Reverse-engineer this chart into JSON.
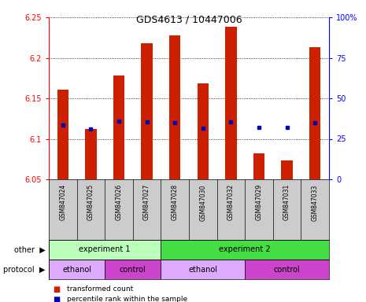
{
  "title": "GDS4613 / 10447006",
  "samples": [
    "GSM847024",
    "GSM847025",
    "GSM847026",
    "GSM847027",
    "GSM847028",
    "GSM847030",
    "GSM847032",
    "GSM847029",
    "GSM847031",
    "GSM847033"
  ],
  "bar_values": [
    6.161,
    6.112,
    6.178,
    6.218,
    6.228,
    6.168,
    6.238,
    6.082,
    6.073,
    6.213
  ],
  "bar_base": 6.05,
  "blue_marker_values": [
    6.117,
    6.112,
    6.122,
    6.121,
    6.12,
    6.113,
    6.121,
    6.114,
    6.114,
    6.12
  ],
  "ylim_left": [
    6.05,
    6.25
  ],
  "ylim_right": [
    0,
    100
  ],
  "yticks_left": [
    6.05,
    6.1,
    6.15,
    6.2,
    6.25
  ],
  "ytick_labels_left": [
    "6.05",
    "6.1",
    "6.15",
    "6.2",
    "6.25"
  ],
  "yticks_right": [
    0,
    25,
    50,
    75,
    100
  ],
  "ytick_labels_right": [
    "0",
    "25",
    "50",
    "75",
    "100%"
  ],
  "bar_color": "#cc2000",
  "blue_color": "#0000bb",
  "experiment_groups": [
    {
      "label": "experiment 1",
      "start": 0,
      "end": 4,
      "color": "#bbffbb"
    },
    {
      "label": "experiment 2",
      "start": 4,
      "end": 10,
      "color": "#44dd44"
    }
  ],
  "protocol_groups": [
    {
      "label": "ethanol",
      "start": 0,
      "end": 2,
      "color": "#ddaaff"
    },
    {
      "label": "control",
      "start": 2,
      "end": 4,
      "color": "#cc44cc"
    },
    {
      "label": "ethanol",
      "start": 4,
      "end": 7,
      "color": "#ddaaff"
    },
    {
      "label": "control",
      "start": 7,
      "end": 10,
      "color": "#cc44cc"
    }
  ],
  "other_label": "other",
  "protocol_label": "protocol",
  "legend_items": [
    {
      "label": "transformed count",
      "color": "#cc2000"
    },
    {
      "label": "percentile rank within the sample",
      "color": "#0000bb"
    }
  ],
  "bg_color": "white",
  "tick_area_color": "#cccccc",
  "bar_width": 0.4
}
